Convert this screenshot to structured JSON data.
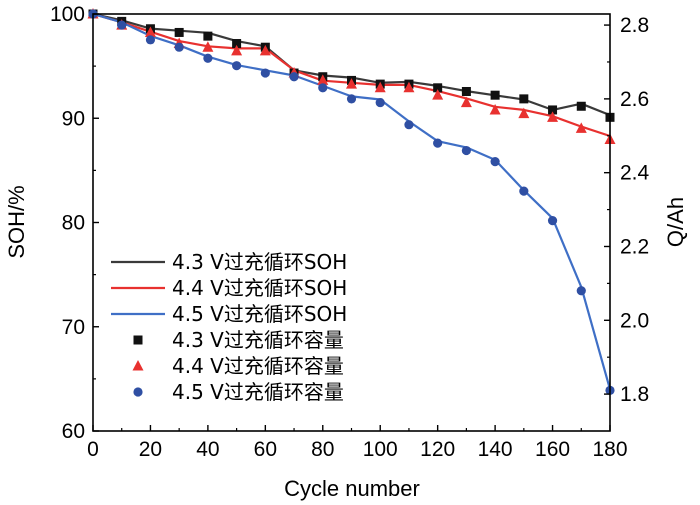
{
  "chart_data": {
    "type": "line",
    "xlabel": "Cycle number",
    "ylabel_left": "SOH/%",
    "ylabel_right": "Q/Ah",
    "xlim": [
      0,
      180
    ],
    "ylim_left": [
      60,
      100
    ],
    "ylim_right": [
      1.7,
      2.83
    ],
    "x_ticks": [
      "0",
      "20",
      "40",
      "60",
      "80",
      "100",
      "120",
      "140",
      "160",
      "180"
    ],
    "y_left_ticks": [
      "60",
      "70",
      "80",
      "90",
      "100"
    ],
    "y_right_ticks": [
      "1.8",
      "2.0",
      "2.2",
      "2.4",
      "2.6",
      "2.8"
    ],
    "grid": false,
    "legend_position": "bottom-left",
    "x": [
      0,
      10,
      20,
      30,
      40,
      50,
      60,
      70,
      80,
      90,
      100,
      110,
      120,
      130,
      140,
      150,
      160,
      170,
      180
    ],
    "series": [
      {
        "name": "4.3 V过充循环SOH",
        "kind": "line",
        "axis": "left",
        "color": "#3a3a3a",
        "values": [
          100,
          99.4,
          98.6,
          98.4,
          98.2,
          97.4,
          96.9,
          94.6,
          94.1,
          93.9,
          93.4,
          93.5,
          93.1,
          92.6,
          92.2,
          91.8,
          90.8,
          91.4,
          90.3
        ]
      },
      {
        "name": "4.4 V过充循环SOH",
        "kind": "line",
        "axis": "left",
        "color": "#e8312f",
        "values": [
          100,
          99.2,
          98.3,
          97.4,
          96.9,
          96.7,
          96.7,
          94.6,
          93.6,
          93.4,
          93.2,
          93.2,
          92.6,
          91.9,
          91.1,
          90.8,
          90.2,
          89.2,
          88.3
        ]
      },
      {
        "name": "4.5 V过充循环SOH",
        "kind": "line",
        "axis": "left",
        "color": "#3f6fc6",
        "values": [
          100,
          99.2,
          97.9,
          97.0,
          95.9,
          95.1,
          94.6,
          94.1,
          93.1,
          92.1,
          91.8,
          89.7,
          87.8,
          87.2,
          86.0,
          83.1,
          80.4,
          73.8,
          64.0
        ]
      },
      {
        "name": "4.3 V过充循环容量",
        "kind": "scatter",
        "marker": "square",
        "axis": "right",
        "color": "#111111",
        "values": [
          2.83,
          2.81,
          2.79,
          2.78,
          2.77,
          2.75,
          2.74,
          2.67,
          2.66,
          2.65,
          2.64,
          2.64,
          2.63,
          2.62,
          2.61,
          2.6,
          2.57,
          2.58,
          2.55
        ]
      },
      {
        "name": "4.4 V过充循环容量",
        "kind": "scatter",
        "marker": "triangle",
        "axis": "right",
        "color": "#e8312f",
        "values": [
          2.83,
          2.8,
          2.78,
          2.75,
          2.74,
          2.73,
          2.73,
          2.67,
          2.65,
          2.64,
          2.63,
          2.63,
          2.61,
          2.59,
          2.57,
          2.56,
          2.55,
          2.52,
          2.49
        ]
      },
      {
        "name": "4.5 V过充循环容量",
        "kind": "scatter",
        "marker": "circle",
        "axis": "right",
        "color": "#2f4fa3",
        "values": [
          2.83,
          2.8,
          2.76,
          2.74,
          2.71,
          2.69,
          2.67,
          2.66,
          2.63,
          2.6,
          2.59,
          2.53,
          2.48,
          2.46,
          2.43,
          2.35,
          2.27,
          2.08,
          1.81
        ]
      }
    ]
  }
}
